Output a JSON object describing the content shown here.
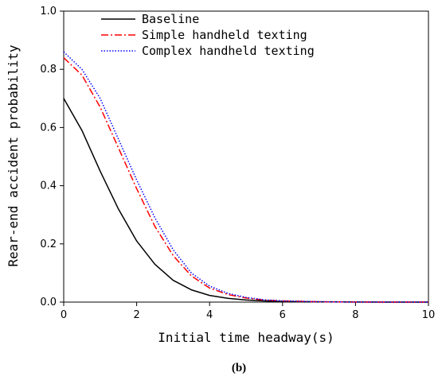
{
  "chart_data": {
    "type": "line",
    "xlabel": "Initial time headway(s)",
    "ylabel": "Rear-end accident probability",
    "xlim": [
      0,
      10
    ],
    "ylim": [
      0,
      1.0
    ],
    "x_ticks": [
      0,
      2,
      4,
      6,
      8,
      10
    ],
    "x_tick_labels": [
      "0",
      "2",
      "4",
      "6",
      "8",
      "10"
    ],
    "y_ticks": [
      0,
      0.2,
      0.4,
      0.6,
      0.8,
      1.0
    ],
    "y_tick_labels": [
      "0.0",
      "0.2",
      "0.4",
      "0.6",
      "0.8",
      "1.0"
    ],
    "grid": false,
    "legend_position": "top-left",
    "panel_label": "(b)",
    "x": [
      0,
      0.5,
      1,
      1.5,
      2,
      2.5,
      3,
      3.5,
      4,
      4.5,
      5,
      5.5,
      6,
      7,
      8,
      9,
      10
    ],
    "series": [
      {
        "name": "Baseline",
        "color": "#000000",
        "style": "solid",
        "values": [
          0.7,
          0.59,
          0.45,
          0.32,
          0.21,
          0.13,
          0.075,
          0.042,
          0.023,
          0.013,
          0.007,
          0.004,
          0.002,
          0.001,
          0.0003,
          0.0001,
          0.0
        ]
      },
      {
        "name": "Simple handheld texting",
        "color": "#ff0000",
        "style": "dashdot",
        "values": [
          0.84,
          0.78,
          0.67,
          0.53,
          0.39,
          0.26,
          0.16,
          0.09,
          0.048,
          0.026,
          0.014,
          0.007,
          0.004,
          0.001,
          0.0004,
          0.0001,
          0.0
        ]
      },
      {
        "name": "Complex handheld texting",
        "color": "#0000ff",
        "style": "dotted",
        "values": [
          0.86,
          0.8,
          0.7,
          0.56,
          0.42,
          0.29,
          0.18,
          0.1,
          0.055,
          0.03,
          0.016,
          0.008,
          0.004,
          0.001,
          0.0004,
          0.0001,
          0.0
        ]
      }
    ]
  }
}
